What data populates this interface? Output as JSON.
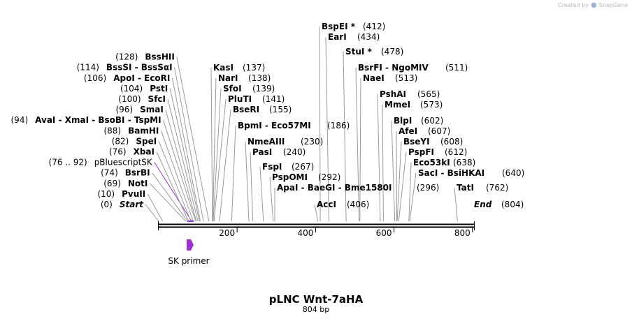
{
  "credit": {
    "text": "Created by",
    "brand": "SnapGene",
    "logo_icon": "snapgene-logo-icon"
  },
  "title": "pLNC Wnt-7aHA",
  "length_label": "804 bp",
  "length_bp": 804,
  "axis_ticks": [
    "200",
    "400",
    "600",
    "800"
  ],
  "feature_label": "SK primer",
  "colors": {
    "feature": "#9b30d9",
    "backbone": "#000000",
    "leader": "#999999"
  },
  "left_labels": [
    {
      "pos": "(0)",
      "name": "Start",
      "italic": true,
      "bp": 0
    },
    {
      "pos": "(10)",
      "name": "PvuII",
      "bp": 10
    },
    {
      "pos": "(69)",
      "name": "NotI",
      "bp": 69
    },
    {
      "pos": "(74)",
      "name": "BsrBI",
      "bp": 74
    },
    {
      "pos": "(76 .. 92)",
      "name": "pBluescriptSK",
      "feature": true,
      "bp": 84
    },
    {
      "pos": "(76)",
      "name": "XbaI",
      "bp": 76
    },
    {
      "pos": "(82)",
      "name": "SpeI",
      "bp": 82
    },
    {
      "pos": "(88)",
      "name": "BamHI",
      "bp": 88
    },
    {
      "pos": "(94)",
      "name": "AvaI - XmaI - BsoBI - TspMI",
      "bp": 94
    },
    {
      "pos": "(96)",
      "name": "SmaI",
      "bp": 96
    },
    {
      "pos": "(100)",
      "name": "SfcI",
      "bp": 100
    },
    {
      "pos": "(104)",
      "name": "PstI",
      "bp": 104
    },
    {
      "pos": "(106)",
      "name": "ApoI - EcoRI",
      "bp": 106
    },
    {
      "pos": "(114)",
      "name": "BssSI - BssSαI",
      "bp": 114
    },
    {
      "pos": "(128)",
      "name": "BssHII",
      "bp": 128
    }
  ],
  "right_labels": [
    {
      "name": "KasI",
      "pos": "(137)",
      "bp": 137
    },
    {
      "name": "NarI",
      "pos": "(138)",
      "bp": 138
    },
    {
      "name": "SfoI",
      "pos": "(139)",
      "bp": 139
    },
    {
      "name": "PluTI",
      "pos": "(141)",
      "bp": 141
    },
    {
      "name": "BseRI",
      "pos": "(155)",
      "bp": 155
    },
    {
      "name": "BpmI - Eco57MI",
      "pos": "(186)",
      "bp": 186
    },
    {
      "name": "NmeAIII",
      "pos": "(230)",
      "bp": 230
    },
    {
      "name": "PasI",
      "pos": "(240)",
      "bp": 240
    },
    {
      "name": "FspI",
      "pos": "(267)",
      "bp": 267
    },
    {
      "name": "PspOMI",
      "pos": "(292)",
      "bp": 292
    },
    {
      "name": "ApaI - BaeGI - Bme1580I",
      "pos": "(296)",
      "bp": 296
    },
    {
      "name": "AccI",
      "pos": "(406)",
      "bp": 406
    },
    {
      "name": "BspEI *",
      "pos": "(412)",
      "bp": 412
    },
    {
      "name": "EarI",
      "pos": "(434)",
      "bp": 434
    },
    {
      "name": "StuI *",
      "pos": "(478)",
      "bp": 478
    },
    {
      "name": "BsrFI - NgoMIV",
      "pos": "(511)",
      "bp": 511
    },
    {
      "name": "NaeI",
      "pos": "(513)",
      "bp": 513
    },
    {
      "name": "PshAI",
      "pos": "(565)",
      "bp": 565
    },
    {
      "name": "MmeI",
      "pos": "(573)",
      "bp": 573
    },
    {
      "name": "BlpI",
      "pos": "(602)",
      "bp": 602
    },
    {
      "name": "AfeI",
      "pos": "(607)",
      "bp": 607
    },
    {
      "name": "BseYI",
      "pos": "(608)",
      "bp": 608
    },
    {
      "name": "PspFI",
      "pos": "(612)",
      "bp": 612
    },
    {
      "name": "Eco53kI",
      "pos": "(638)",
      "bp": 638
    },
    {
      "name": "SacI - BsiHKAI",
      "pos": "(640)",
      "bp": 640
    },
    {
      "name": "TatI",
      "pos": "(762)",
      "bp": 762
    },
    {
      "name": "End",
      "pos": "(804)",
      "italic": true,
      "bp": 804
    }
  ]
}
